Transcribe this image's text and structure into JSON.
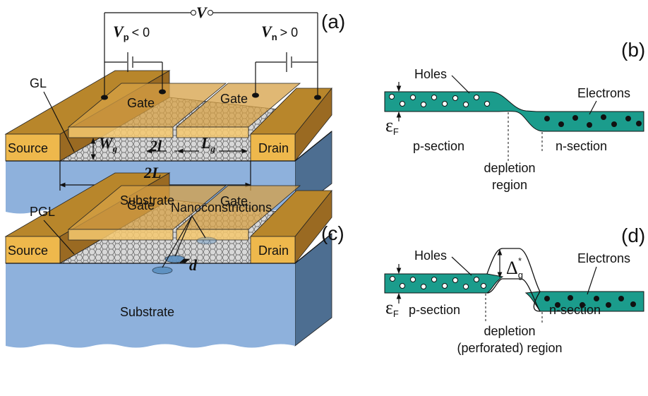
{
  "panel_a": {
    "tag": "(a)",
    "voltage": "V",
    "vp": {
      "symbol": "V",
      "sub": "p",
      "relation": "< 0"
    },
    "vn": {
      "symbol": "V",
      "sub": "n",
      "relation": "> 0"
    },
    "layer": "GL",
    "gate_left": "Gate",
    "gate_right": "Gate",
    "source": "Source",
    "drain": "Drain",
    "wg": {
      "symbol": "W",
      "sub": "g"
    },
    "gap": "2l",
    "lg": {
      "symbol": "L",
      "sub": "g"
    },
    "length": "2L",
    "substrate": "Substrate"
  },
  "panel_b": {
    "tag": "(b)",
    "holes": "Holes",
    "electrons": "Electrons",
    "fermi": {
      "symbol": "ε",
      "sub": "F"
    },
    "p_section": "p-section",
    "n_section": "n-section",
    "depletion": [
      "depletion",
      "region"
    ]
  },
  "panel_c": {
    "tag": "(c)",
    "nanoconstrictions": "Nanoconstrictions",
    "layer": "PGL",
    "gate_left": "Gate",
    "gate_right": "Gate",
    "source": "Source",
    "drain": "Drain",
    "d": "d",
    "substrate": "Substrate"
  },
  "panel_d": {
    "tag": "(d)",
    "holes": "Holes",
    "electrons": "Electrons",
    "fermi": {
      "symbol": "ε",
      "sub": "F"
    },
    "gap": {
      "symbol": "Δ",
      "sub": "g",
      "sup": "*"
    },
    "p_section": "p-section",
    "n_section": "n-section",
    "depletion": [
      "depletion",
      "(perforated) region"
    ]
  }
}
